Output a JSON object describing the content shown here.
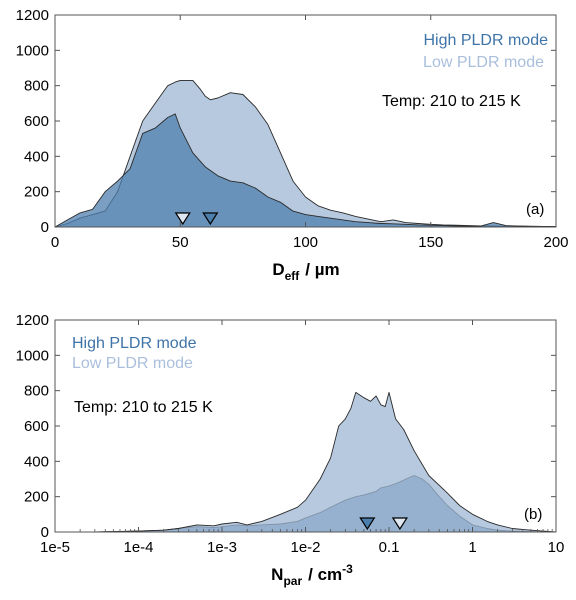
{
  "colors": {
    "high_fill": "#4d7fae",
    "high_fill_opacity": 0.75,
    "low_fill": "#9fb7d3",
    "low_fill_opacity": 0.75,
    "high_text": "#3f74a8",
    "low_text": "#a9bfdc",
    "line": "#2a2a2a"
  },
  "chart_data": [
    {
      "type": "area",
      "panel_label": "(a)",
      "xlabel_main": "D",
      "xlabel_sub": "eff",
      "xlabel_unit": "/ µm",
      "xlim": [
        0,
        200
      ],
      "ylim": [
        0,
        1200
      ],
      "x_scale": "linear",
      "xticks": [
        0,
        50,
        100,
        150,
        200
      ],
      "xtick_labels": [
        "0",
        "50",
        "100",
        "150",
        "200"
      ],
      "yticks": [
        0,
        200,
        400,
        600,
        800,
        1000,
        1200
      ],
      "ytick_labels": [
        "0",
        "200",
        "400",
        "600",
        "800",
        "1000",
        "1200"
      ],
      "legend": [
        "High PLDR mode",
        "Low PLDR mode"
      ],
      "legend_placement": "top-right",
      "annotation": "Temp: 210 to 215 K",
      "series": [
        {
          "name": "Low PLDR mode",
          "x": [
            0,
            5,
            10,
            15,
            20,
            25,
            30,
            35,
            40,
            42,
            45,
            48,
            50,
            55,
            58,
            60,
            62,
            65,
            70,
            75,
            80,
            85,
            90,
            95,
            100,
            105,
            110,
            115,
            120,
            125,
            130,
            135,
            140,
            145,
            150,
            155,
            160,
            165,
            170,
            175,
            180,
            185,
            190,
            195,
            200
          ],
          "y": [
            0,
            20,
            50,
            70,
            90,
            200,
            400,
            600,
            700,
            740,
            800,
            820,
            830,
            830,
            780,
            740,
            720,
            730,
            760,
            750,
            680,
            580,
            420,
            260,
            170,
            120,
            95,
            80,
            60,
            45,
            30,
            40,
            25,
            20,
            15,
            12,
            10,
            8,
            6,
            5,
            4,
            5,
            4,
            3,
            2
          ]
        },
        {
          "name": "High PLDR mode",
          "x": [
            0,
            5,
            10,
            15,
            20,
            25,
            30,
            35,
            40,
            45,
            48,
            50,
            55,
            60,
            65,
            70,
            75,
            80,
            85,
            90,
            95,
            100,
            105,
            110,
            115,
            120,
            125,
            130,
            135,
            140,
            145,
            150,
            155,
            160,
            165,
            170,
            175,
            180,
            185,
            190,
            195,
            200
          ],
          "y": [
            0,
            40,
            80,
            100,
            200,
            260,
            330,
            530,
            560,
            620,
            640,
            560,
            420,
            340,
            290,
            260,
            250,
            220,
            170,
            140,
            90,
            70,
            60,
            50,
            40,
            30,
            25,
            20,
            18,
            15,
            12,
            10,
            8,
            6,
            5,
            5,
            25,
            8,
            5,
            4,
            3,
            2
          ]
        }
      ],
      "markers": [
        {
          "series": "Low PLDR mode",
          "x": 51
        },
        {
          "series": "High PLDR mode",
          "x": 62
        }
      ]
    },
    {
      "type": "area",
      "panel_label": "(b)",
      "xlabel_main": "N",
      "xlabel_sub": "par",
      "xlabel_unit": "/ cm",
      "xlabel_sup": "-3",
      "xlim": [
        1e-05,
        10
      ],
      "ylim": [
        0,
        1200
      ],
      "x_scale": "log",
      "xticks": [
        1e-05,
        0.0001,
        0.001,
        0.01,
        0.1,
        1,
        10
      ],
      "xtick_labels": [
        "1e-5",
        "1e-4",
        "1e-3",
        "1e-2",
        "0.1",
        "1",
        "10"
      ],
      "yticks": [
        0,
        200,
        400,
        600,
        800,
        1000,
        1200
      ],
      "ytick_labels": [
        "0",
        "200",
        "400",
        "600",
        "800",
        "1000",
        "1200"
      ],
      "legend": [
        "High PLDR mode",
        "Low PLDR mode"
      ],
      "legend_placement": "top-left",
      "annotation": "Temp: 210 to 215 K",
      "series": [
        {
          "name": "High PLDR mode",
          "x": [
            1e-05,
            3e-05,
            0.0001,
            0.0002,
            0.0003,
            0.0005,
            0.0008,
            0.001,
            0.0015,
            0.002,
            0.003,
            0.005,
            0.008,
            0.01,
            0.015,
            0.02,
            0.03,
            0.04,
            0.05,
            0.06,
            0.07,
            0.08,
            0.1,
            0.13,
            0.16,
            0.2,
            0.25,
            0.3,
            0.4,
            0.5,
            0.7,
            1,
            1.5,
            2,
            3,
            5,
            8,
            10
          ],
          "y": [
            0,
            0,
            5,
            10,
            20,
            30,
            25,
            30,
            40,
            35,
            40,
            45,
            60,
            80,
            110,
            140,
            180,
            200,
            210,
            220,
            230,
            250,
            260,
            280,
            300,
            320,
            300,
            270,
            200,
            150,
            90,
            40,
            20,
            10,
            5,
            2,
            1,
            0
          ]
        },
        {
          "name": "Low PLDR mode",
          "x": [
            1e-05,
            3e-05,
            0.0001,
            0.0002,
            0.0003,
            0.0005,
            0.0008,
            0.001,
            0.0015,
            0.002,
            0.003,
            0.005,
            0.008,
            0.01,
            0.015,
            0.02,
            0.025,
            0.03,
            0.035,
            0.04,
            0.05,
            0.06,
            0.07,
            0.08,
            0.09,
            0.1,
            0.12,
            0.15,
            0.2,
            0.3,
            0.5,
            0.7,
            1,
            1.5,
            2,
            3,
            5,
            7,
            10
          ],
          "y": [
            0,
            0,
            5,
            10,
            20,
            40,
            35,
            45,
            55,
            40,
            60,
            100,
            140,
            180,
            300,
            420,
            600,
            640,
            700,
            790,
            760,
            740,
            770,
            720,
            710,
            790,
            640,
            580,
            460,
            320,
            220,
            150,
            100,
            60,
            40,
            20,
            10,
            5,
            0
          ]
        }
      ],
      "markers": [
        {
          "series": "High PLDR mode",
          "x": 0.055
        },
        {
          "series": "Low PLDR mode",
          "x": 0.135
        }
      ]
    }
  ]
}
